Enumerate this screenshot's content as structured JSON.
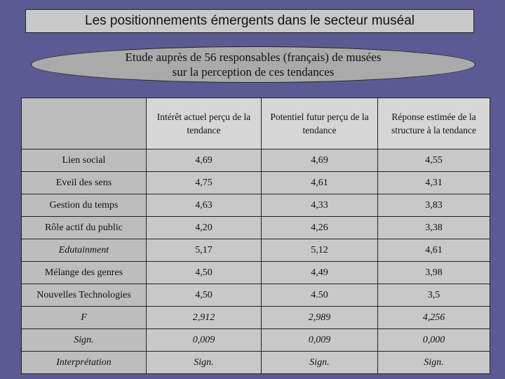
{
  "title": "Les positionnements émergents dans le secteur muséal",
  "subtitle": {
    "line1": "Etude auprès de 56 responsables (français) de musées",
    "line2": "sur la perception de ces tendances"
  },
  "table": {
    "headers": [
      "Intérêt actuel perçu de la tendance",
      "Potentiel futur perçu de la tendance",
      "Réponse estimée de la structure à la tendance"
    ],
    "rows": [
      {
        "label": "Lien social",
        "values": [
          "4,69",
          "4,69",
          "4,55"
        ]
      },
      {
        "label": "Eveil des sens",
        "values": [
          "4,75",
          "4,61",
          "4,31"
        ]
      },
      {
        "label": "Gestion du temps",
        "values": [
          "4,63",
          "4,33",
          "3,83"
        ]
      },
      {
        "label": "Rôle actif du public",
        "values": [
          "4,20",
          "4,26",
          "3,38"
        ]
      },
      {
        "label": "Edutainment",
        "values": [
          "5,17",
          "5,12",
          "4,61"
        ]
      },
      {
        "label": "Mélange des genres",
        "values": [
          "4,50",
          "4,49",
          "3,98"
        ]
      },
      {
        "label": "Nouvelles Technologies",
        "values": [
          "4,50",
          "4.50",
          "3,5"
        ]
      }
    ],
    "stats": [
      {
        "label": "F",
        "values": [
          "2,912",
          "2,989",
          "4,256"
        ]
      },
      {
        "label": "Sign.",
        "values": [
          "0,009",
          "0,009",
          "0,000"
        ]
      },
      {
        "label": "Interprétation",
        "values": [
          "Sign.",
          "Sign.",
          "Sign."
        ]
      }
    ]
  }
}
